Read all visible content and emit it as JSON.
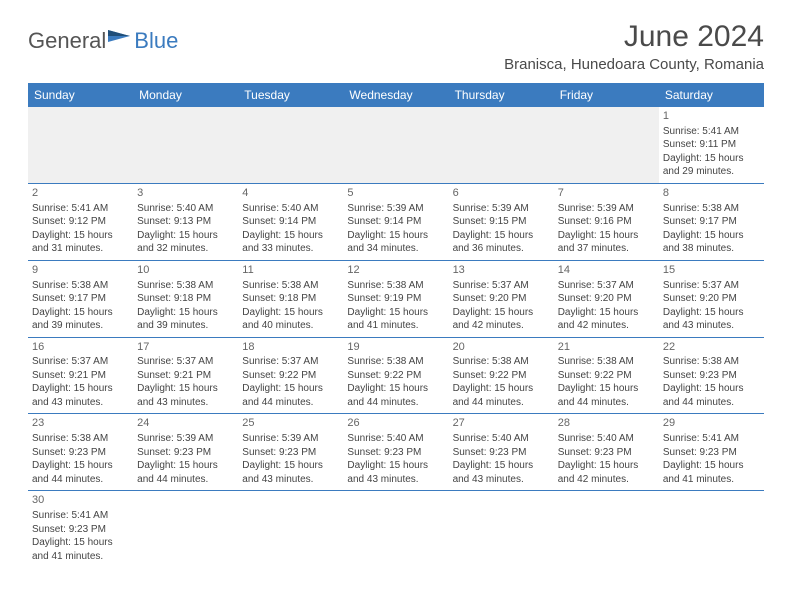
{
  "logo": {
    "general": "General",
    "blue": "Blue"
  },
  "title": "June 2024",
  "location": "Branisca, Hunedoara County, Romania",
  "colors": {
    "header_bg": "#3b7bbf",
    "header_text": "#ffffff",
    "text": "#444444",
    "border": "#3b7bbf",
    "empty_row_bg": "#f0f0f0"
  },
  "weekdays": [
    "Sunday",
    "Monday",
    "Tuesday",
    "Wednesday",
    "Thursday",
    "Friday",
    "Saturday"
  ],
  "weeks": [
    [
      null,
      null,
      null,
      null,
      null,
      null,
      {
        "n": "1",
        "sr": "5:41 AM",
        "ss": "9:11 PM",
        "dl": "15 hours and 29 minutes."
      }
    ],
    [
      {
        "n": "2",
        "sr": "5:41 AM",
        "ss": "9:12 PM",
        "dl": "15 hours and 31 minutes."
      },
      {
        "n": "3",
        "sr": "5:40 AM",
        "ss": "9:13 PM",
        "dl": "15 hours and 32 minutes."
      },
      {
        "n": "4",
        "sr": "5:40 AM",
        "ss": "9:14 PM",
        "dl": "15 hours and 33 minutes."
      },
      {
        "n": "5",
        "sr": "5:39 AM",
        "ss": "9:14 PM",
        "dl": "15 hours and 34 minutes."
      },
      {
        "n": "6",
        "sr": "5:39 AM",
        "ss": "9:15 PM",
        "dl": "15 hours and 36 minutes."
      },
      {
        "n": "7",
        "sr": "5:39 AM",
        "ss": "9:16 PM",
        "dl": "15 hours and 37 minutes."
      },
      {
        "n": "8",
        "sr": "5:38 AM",
        "ss": "9:17 PM",
        "dl": "15 hours and 38 minutes."
      }
    ],
    [
      {
        "n": "9",
        "sr": "5:38 AM",
        "ss": "9:17 PM",
        "dl": "15 hours and 39 minutes."
      },
      {
        "n": "10",
        "sr": "5:38 AM",
        "ss": "9:18 PM",
        "dl": "15 hours and 39 minutes."
      },
      {
        "n": "11",
        "sr": "5:38 AM",
        "ss": "9:18 PM",
        "dl": "15 hours and 40 minutes."
      },
      {
        "n": "12",
        "sr": "5:38 AM",
        "ss": "9:19 PM",
        "dl": "15 hours and 41 minutes."
      },
      {
        "n": "13",
        "sr": "5:37 AM",
        "ss": "9:20 PM",
        "dl": "15 hours and 42 minutes."
      },
      {
        "n": "14",
        "sr": "5:37 AM",
        "ss": "9:20 PM",
        "dl": "15 hours and 42 minutes."
      },
      {
        "n": "15",
        "sr": "5:37 AM",
        "ss": "9:20 PM",
        "dl": "15 hours and 43 minutes."
      }
    ],
    [
      {
        "n": "16",
        "sr": "5:37 AM",
        "ss": "9:21 PM",
        "dl": "15 hours and 43 minutes."
      },
      {
        "n": "17",
        "sr": "5:37 AM",
        "ss": "9:21 PM",
        "dl": "15 hours and 43 minutes."
      },
      {
        "n": "18",
        "sr": "5:37 AM",
        "ss": "9:22 PM",
        "dl": "15 hours and 44 minutes."
      },
      {
        "n": "19",
        "sr": "5:38 AM",
        "ss": "9:22 PM",
        "dl": "15 hours and 44 minutes."
      },
      {
        "n": "20",
        "sr": "5:38 AM",
        "ss": "9:22 PM",
        "dl": "15 hours and 44 minutes."
      },
      {
        "n": "21",
        "sr": "5:38 AM",
        "ss": "9:22 PM",
        "dl": "15 hours and 44 minutes."
      },
      {
        "n": "22",
        "sr": "5:38 AM",
        "ss": "9:23 PM",
        "dl": "15 hours and 44 minutes."
      }
    ],
    [
      {
        "n": "23",
        "sr": "5:38 AM",
        "ss": "9:23 PM",
        "dl": "15 hours and 44 minutes."
      },
      {
        "n": "24",
        "sr": "5:39 AM",
        "ss": "9:23 PM",
        "dl": "15 hours and 44 minutes."
      },
      {
        "n": "25",
        "sr": "5:39 AM",
        "ss": "9:23 PM",
        "dl": "15 hours and 43 minutes."
      },
      {
        "n": "26",
        "sr": "5:40 AM",
        "ss": "9:23 PM",
        "dl": "15 hours and 43 minutes."
      },
      {
        "n": "27",
        "sr": "5:40 AM",
        "ss": "9:23 PM",
        "dl": "15 hours and 43 minutes."
      },
      {
        "n": "28",
        "sr": "5:40 AM",
        "ss": "9:23 PM",
        "dl": "15 hours and 42 minutes."
      },
      {
        "n": "29",
        "sr": "5:41 AM",
        "ss": "9:23 PM",
        "dl": "15 hours and 41 minutes."
      }
    ],
    [
      {
        "n": "30",
        "sr": "5:41 AM",
        "ss": "9:23 PM",
        "dl": "15 hours and 41 minutes."
      },
      null,
      null,
      null,
      null,
      null,
      null
    ]
  ],
  "labels": {
    "sunrise": "Sunrise:",
    "sunset": "Sunset:",
    "daylight": "Daylight:"
  }
}
